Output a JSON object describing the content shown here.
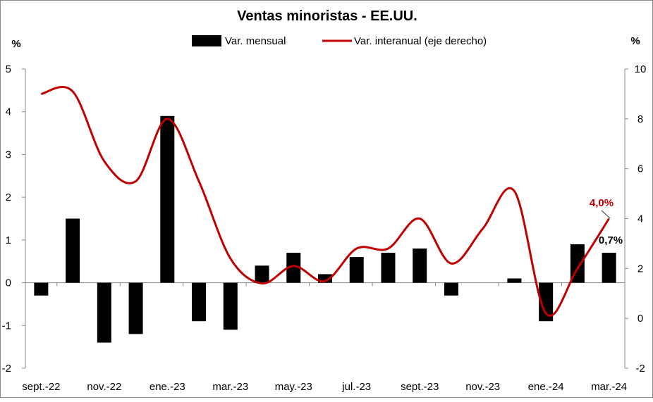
{
  "chart_data": {
    "type": "bar+line",
    "title": "Ventas minoristas - EE.UU.",
    "ylabel_left": "%",
    "ylabel_right": "%",
    "ylim_left": [
      -2,
      5
    ],
    "ylim_right": [
      -2,
      10
    ],
    "yticks_left": [
      -2,
      -1,
      0,
      1,
      2,
      3,
      4,
      5
    ],
    "yticks_right": [
      -2,
      0,
      2,
      4,
      6,
      8,
      10
    ],
    "legend_position": "top-center",
    "categories": [
      "sept.-22",
      "",
      "nov.-22",
      "",
      "ene.-23",
      "",
      "mar.-23",
      "",
      "may.-23",
      "",
      "jul.-23",
      "",
      "sept.-23",
      "",
      "nov.-23",
      "",
      "ene.-24",
      "",
      "mar.-24"
    ],
    "series": [
      {
        "name": "Var. mensual",
        "type": "bar",
        "axis": "left",
        "color": "#000000",
        "values": [
          -0.3,
          1.5,
          -1.4,
          -1.2,
          3.9,
          -0.9,
          -1.1,
          0.4,
          0.7,
          0.2,
          0.6,
          0.7,
          0.8,
          -0.3,
          0.0,
          0.1,
          -0.9,
          0.9,
          0.7
        ]
      },
      {
        "name": "Var. interanual (eje derecho)",
        "type": "line",
        "axis": "right",
        "color": "#C00000",
        "values": [
          9.0,
          9.1,
          6.3,
          5.5,
          8.0,
          5.5,
          2.4,
          1.4,
          2.1,
          1.5,
          2.8,
          2.8,
          4.0,
          2.2,
          3.6,
          5.1,
          0.2,
          2.0,
          4.0
        ]
      }
    ],
    "annotations": {
      "line_last": "4,0%",
      "bar_last": "0,7%"
    }
  }
}
